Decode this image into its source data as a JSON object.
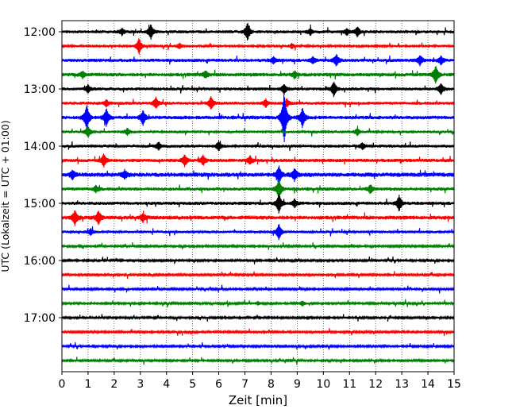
{
  "chart_data": {
    "type": "line",
    "subtype": "helicorder",
    "xlabel": "Zeit  [min]",
    "ylabel": "UTC (Lokalzeit = UTC + 01:00)",
    "xlim": [
      0,
      15
    ],
    "x_ticks": [
      0,
      1,
      2,
      3,
      4,
      5,
      6,
      7,
      8,
      9,
      10,
      11,
      12,
      13,
      14,
      15
    ],
    "y_ticks": [
      "12:00",
      "13:00",
      "14:00",
      "15:00",
      "16:00",
      "17:00"
    ],
    "trace_interval_minutes": 15,
    "grid_x": true,
    "grid_y": false,
    "trace_colors": [
      "#000000",
      "#ff0000",
      "#0000ff",
      "#008000"
    ],
    "traces": [
      {
        "start": "12:00",
        "noise": 0.9,
        "events": [
          [
            3.4,
            9
          ],
          [
            7.1,
            11
          ],
          [
            11.3,
            6
          ],
          [
            2.3,
            4
          ],
          [
            9.5,
            4
          ],
          [
            10.9,
            4
          ]
        ]
      },
      {
        "start": "12:15",
        "noise": 0.7,
        "events": [
          [
            2.95,
            10
          ],
          [
            4.5,
            3
          ],
          [
            8.8,
            3
          ]
        ]
      },
      {
        "start": "12:30",
        "noise": 1.0,
        "events": [
          [
            10.5,
            7
          ],
          [
            13.7,
            6
          ],
          [
            14.5,
            5
          ],
          [
            8.1,
            4
          ],
          [
            9.6,
            4
          ]
        ]
      },
      {
        "start": "12:45",
        "noise": 1.1,
        "events": [
          [
            14.3,
            11
          ],
          [
            5.5,
            4
          ],
          [
            8.9,
            4
          ],
          [
            0.8,
            4
          ]
        ]
      },
      {
        "start": "13:00",
        "noise": 0.9,
        "events": [
          [
            10.4,
            9
          ],
          [
            14.5,
            7
          ],
          [
            8.5,
            6
          ],
          [
            1.0,
            5
          ]
        ]
      },
      {
        "start": "13:15",
        "noise": 0.9,
        "events": [
          [
            5.7,
            8
          ],
          [
            3.6,
            7
          ],
          [
            1.7,
            4
          ],
          [
            7.8,
            5
          ],
          [
            8.6,
            5
          ]
        ]
      },
      {
        "start": "13:30",
        "noise": 1.1,
        "events": [
          [
            8.5,
            32
          ],
          [
            0.95,
            16
          ],
          [
            9.2,
            12
          ],
          [
            1.7,
            11
          ],
          [
            3.1,
            9
          ]
        ]
      },
      {
        "start": "13:45",
        "noise": 0.8,
        "events": [
          [
            1.0,
            7
          ],
          [
            2.5,
            4
          ],
          [
            11.3,
            4
          ]
        ]
      },
      {
        "start": "14:00",
        "noise": 0.9,
        "events": [
          [
            6.0,
            6
          ],
          [
            3.7,
            5
          ],
          [
            11.5,
            4
          ]
        ]
      },
      {
        "start": "14:15",
        "noise": 1.0,
        "events": [
          [
            1.6,
            8
          ],
          [
            4.7,
            7
          ],
          [
            5.4,
            6
          ],
          [
            7.2,
            5
          ]
        ]
      },
      {
        "start": "14:30",
        "noise": 1.3,
        "events": [
          [
            8.3,
            11
          ],
          [
            8.9,
            7
          ],
          [
            0.4,
            5
          ],
          [
            2.4,
            5
          ]
        ]
      },
      {
        "start": "14:45",
        "noise": 1.0,
        "events": [
          [
            8.3,
            12
          ],
          [
            11.8,
            5
          ],
          [
            1.3,
            4
          ]
        ]
      },
      {
        "start": "15:00",
        "noise": 1.0,
        "events": [
          [
            8.3,
            12
          ],
          [
            12.9,
            10
          ],
          [
            8.9,
            5
          ]
        ]
      },
      {
        "start": "15:15",
        "noise": 1.2,
        "events": [
          [
            0.5,
            9
          ],
          [
            1.4,
            8
          ],
          [
            3.1,
            5
          ]
        ]
      },
      {
        "start": "15:30",
        "noise": 0.8,
        "events": [
          [
            8.3,
            10
          ],
          [
            1.1,
            4
          ]
        ]
      },
      {
        "start": "15:45",
        "noise": 0.6,
        "events": []
      },
      {
        "start": "16:00",
        "noise": 0.6,
        "events": []
      },
      {
        "start": "16:15",
        "noise": 0.6,
        "events": []
      },
      {
        "start": "16:30",
        "noise": 0.6,
        "events": []
      },
      {
        "start": "16:45",
        "noise": 0.6,
        "events": [
          [
            9.2,
            3
          ],
          [
            7.5,
            2
          ]
        ]
      },
      {
        "start": "17:00",
        "noise": 0.6,
        "events": []
      },
      {
        "start": "17:15",
        "noise": 0.6,
        "events": []
      },
      {
        "start": "17:30",
        "noise": 0.6,
        "events": []
      },
      {
        "start": "17:45",
        "noise": 0.6,
        "events": []
      }
    ]
  }
}
